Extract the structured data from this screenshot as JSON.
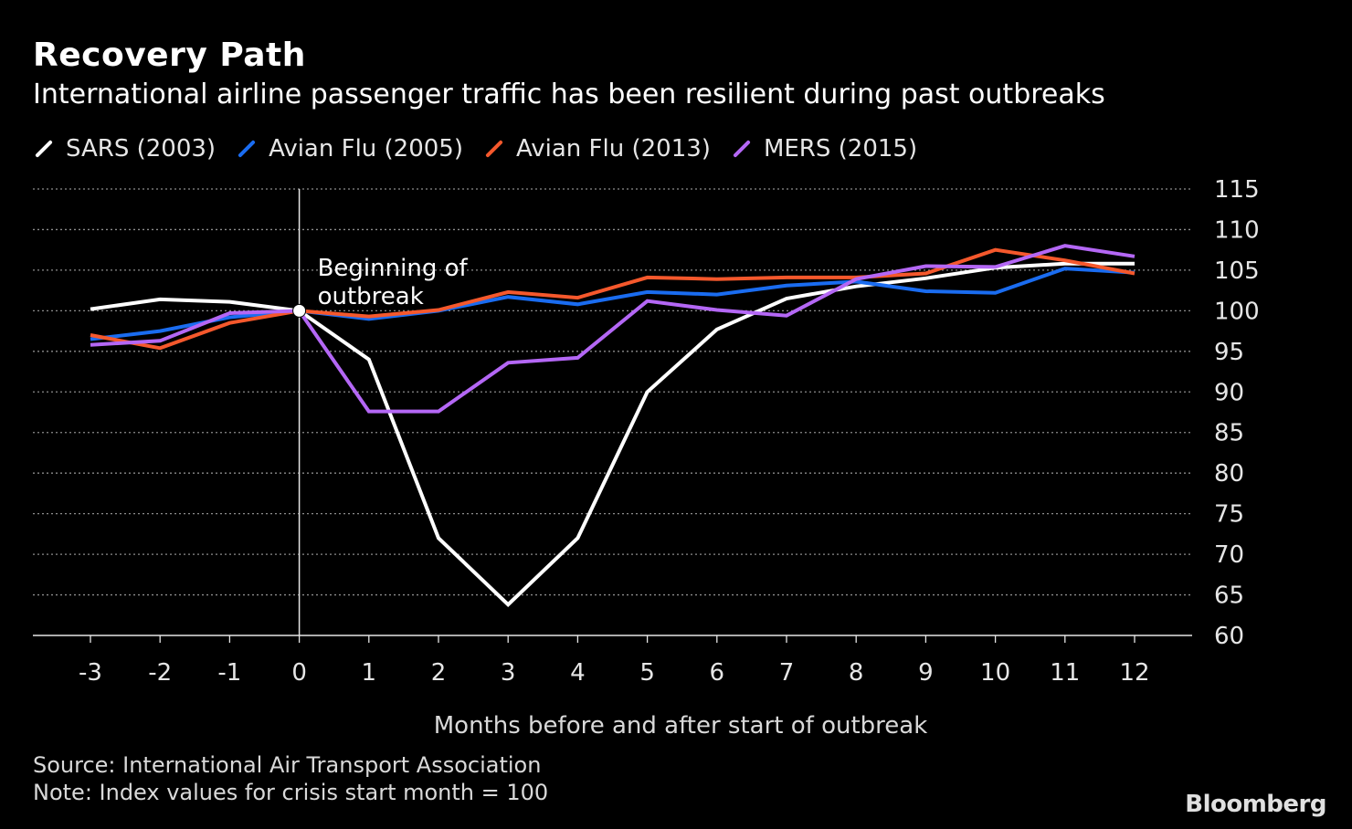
{
  "header": {
    "title": "Recovery Path",
    "subtitle": "International airline passenger traffic has been resilient during past outbreaks"
  },
  "footer": {
    "source": "Source: International Air Transport Association",
    "note": "Note: Index values for crisis start month = 100",
    "brand": "Bloomberg"
  },
  "chart_data": {
    "type": "line",
    "title": "Recovery Path",
    "subtitle": "International airline passenger traffic has been resilient during past outbreaks",
    "xlabel": "Months before and after start of outbreak",
    "ylabel": "",
    "x": [
      -3,
      -2,
      -1,
      0,
      1,
      2,
      3,
      4,
      5,
      6,
      7,
      8,
      9,
      10,
      11,
      12
    ],
    "xticks": [
      "-3",
      "-2",
      "-1",
      "0",
      "1",
      "2",
      "3",
      "4",
      "5",
      "6",
      "7",
      "8",
      "9",
      "10",
      "11",
      "12"
    ],
    "ylim": [
      60,
      115
    ],
    "yticks": [
      60,
      65,
      70,
      75,
      80,
      85,
      90,
      95,
      100,
      105,
      110,
      115
    ],
    "y_axis_side": "right",
    "grid": "horizontal-dotted",
    "legend": "top-left",
    "annotation": {
      "text_line1": "Beginning of",
      "text_line2": "outbreak",
      "x": 0,
      "y": 100
    },
    "series": [
      {
        "name": "SARS (2003)",
        "color": "#ffffff",
        "values": [
          100.2,
          101.4,
          101.1,
          100,
          94.0,
          72.0,
          63.8,
          72.0,
          90.0,
          97.7,
          101.5,
          103.0,
          104.0,
          105.3,
          105.8,
          105.8
        ]
      },
      {
        "name": "Avian Flu (2005)",
        "color": "#1a6cf0",
        "values": [
          96.5,
          97.5,
          99.2,
          100,
          99.0,
          100.0,
          101.7,
          100.8,
          102.3,
          102.0,
          103.1,
          103.6,
          102.4,
          102.2,
          105.2,
          104.7
        ]
      },
      {
        "name": "Avian Flu (2013)",
        "color": "#f5582c",
        "values": [
          97.0,
          95.4,
          98.5,
          100,
          99.3,
          100.1,
          102.3,
          101.6,
          104.1,
          103.9,
          104.1,
          104.1,
          104.6,
          107.5,
          106.2,
          104.6
        ]
      },
      {
        "name": "MERS (2015)",
        "color": "#b467f5",
        "values": [
          95.8,
          96.3,
          99.7,
          100,
          87.6,
          87.6,
          93.6,
          94.2,
          101.2,
          100.1,
          99.4,
          103.9,
          105.5,
          105.4,
          108.0,
          106.7
        ]
      }
    ]
  }
}
